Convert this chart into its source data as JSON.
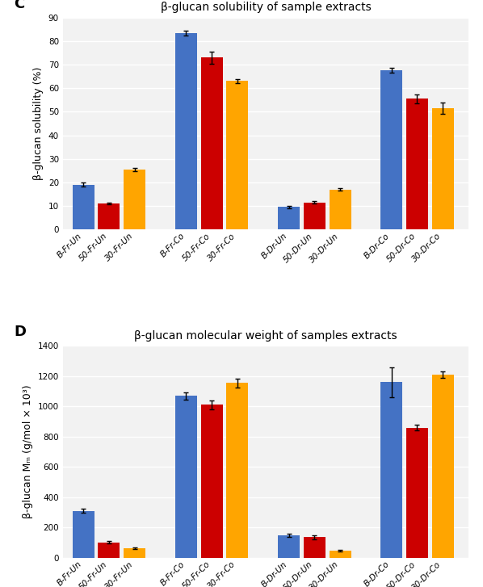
{
  "chart_C": {
    "title": "β-glucan solubility of sample extracts",
    "ylabel": "β-glucan solubility (%)",
    "ylim": [
      0,
      90
    ],
    "yticks": [
      0,
      10,
      20,
      30,
      40,
      50,
      60,
      70,
      80,
      90
    ],
    "groups": [
      "B-Fr-Un",
      "50-Fr-Un",
      "30-Fr-Un",
      "B-Fr-Co",
      "50-Fr-Co",
      "30-Fr-Co",
      "B-Dr-Un",
      "50-Dr-Un",
      "30-Dr-Un",
      "B-Dr-Co",
      "50-Dr-Co",
      "30-Dr-Co"
    ],
    "values": [
      19,
      11,
      25.5,
      83.5,
      73,
      63,
      9.5,
      11.5,
      17,
      67.5,
      55.5,
      51.5
    ],
    "errors": [
      0.8,
      0.5,
      0.7,
      1.0,
      2.5,
      0.8,
      0.5,
      0.5,
      0.5,
      1.0,
      2.0,
      2.5
    ],
    "colors": [
      "#4472C4",
      "#CC0000",
      "#FFA500",
      "#4472C4",
      "#CC0000",
      "#FFA500",
      "#4472C4",
      "#CC0000",
      "#FFA500",
      "#4472C4",
      "#CC0000",
      "#FFA500"
    ],
    "group_gaps": [
      0,
      1,
      2,
      4,
      5,
      6,
      8,
      9,
      10,
      12,
      13,
      14
    ]
  },
  "chart_D": {
    "title": "β-glucan molecular weight of samples extracts",
    "ylabel": "β-glucan Mₘ (g/mol × 10³)",
    "ylim": [
      0,
      1400
    ],
    "yticks": [
      0,
      200,
      400,
      600,
      800,
      1000,
      1200,
      1400
    ],
    "groups": [
      "B-Fr-Un",
      "50-Fr-Un",
      "30-Fr-Un",
      "B-Fr-Co",
      "50-Fr-Co",
      "30-Fr-Co",
      "B-Dr-Un",
      "50-Dr-Un",
      "30-Dr-Un",
      "B-Dr-Co",
      "50-Dr-Co",
      "30-Dr-Co"
    ],
    "values": [
      310,
      100,
      60,
      1070,
      1010,
      1155,
      148,
      135,
      45,
      1160,
      860,
      1210
    ],
    "errors": [
      15,
      8,
      5,
      25,
      30,
      30,
      10,
      12,
      5,
      100,
      20,
      20
    ],
    "colors": [
      "#4472C4",
      "#CC0000",
      "#FFA500",
      "#4472C4",
      "#CC0000",
      "#FFA500",
      "#4472C4",
      "#CC0000",
      "#FFA500",
      "#4472C4",
      "#CC0000",
      "#FFA500"
    ],
    "group_gaps": [
      0,
      1,
      2,
      4,
      5,
      6,
      8,
      9,
      10,
      12,
      13,
      14
    ]
  },
  "label_C": "C",
  "label_D": "D",
  "bar_width": 0.85,
  "background_color": "#FFFFFF",
  "plot_bg_color": "#F2F2F2",
  "grid_color": "#FFFFFF",
  "tick_label_fontsize": 7.5,
  "axis_label_fontsize": 9,
  "title_fontsize": 10
}
